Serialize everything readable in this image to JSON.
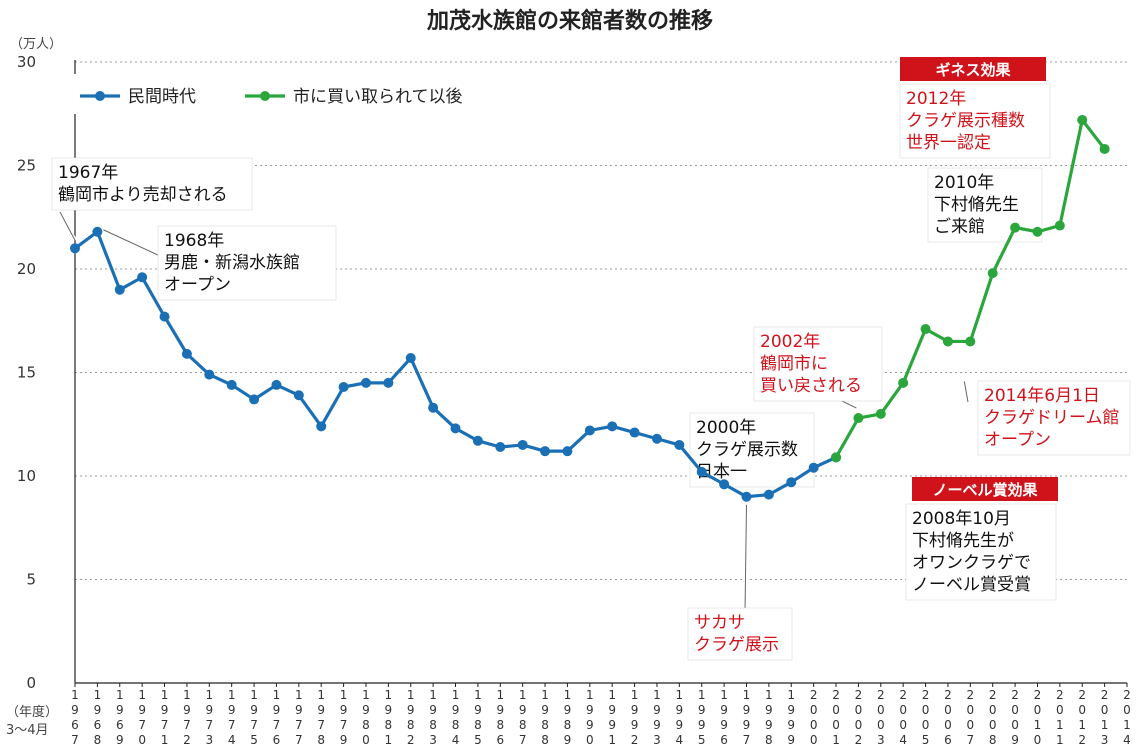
{
  "chart_data": {
    "type": "line",
    "title": "加茂水族館の来館者数の推移",
    "y_unit": "（万人）",
    "x_axis_label_lines": [
      "（年度）",
      "3〜4月"
    ],
    "ylim": [
      0,
      30
    ],
    "yticks": [
      0,
      5,
      10,
      15,
      20,
      25,
      30
    ],
    "grid": "dotted-horizontal",
    "legend_position": "top-left",
    "colors": {
      "series_private": "#1a6fb5",
      "series_city": "#2aa63d",
      "red_text": "#d0121b",
      "badge_bg": "#d0121b",
      "grid": "#999999"
    },
    "x": [
      1967,
      1968,
      1969,
      1970,
      1971,
      1972,
      1973,
      1974,
      1975,
      1976,
      1977,
      1978,
      1979,
      1980,
      1981,
      1982,
      1983,
      1984,
      1985,
      1986,
      1987,
      1988,
      1989,
      1990,
      1991,
      1992,
      1993,
      1994,
      1995,
      1996,
      1997,
      1998,
      1999,
      2000,
      2001,
      2002,
      2003,
      2004,
      2005,
      2006,
      2007,
      2008,
      2009,
      2010,
      2011,
      2012,
      2013,
      2014
    ],
    "x_tick_labels": [
      "1967",
      "1968",
      "1969",
      "1970",
      "1971",
      "1972",
      "1973",
      "1974",
      "1975",
      "1976",
      "1977",
      "1978",
      "1979",
      "1980",
      "1981",
      "1982",
      "1983",
      "1984",
      "1985",
      "1986",
      "1987",
      "1988",
      "1989",
      "1990",
      "1991",
      "1992",
      "1993",
      "1994",
      "1995",
      "1996",
      "1997",
      "1998",
      "1999",
      "2000",
      "2001",
      "2002",
      "2003",
      "2004",
      "2005",
      "2006",
      "2007",
      "2008",
      "2009",
      "2010",
      "2011",
      "2012",
      "2013",
      "2014"
    ],
    "series": [
      {
        "name": "民間時代",
        "color": "#1a6fb5",
        "x": [
          1967,
          1968,
          1969,
          1970,
          1971,
          1972,
          1973,
          1974,
          1975,
          1976,
          1977,
          1978,
          1979,
          1980,
          1981,
          1982,
          1983,
          1984,
          1985,
          1986,
          1987,
          1988,
          1989,
          1990,
          1991,
          1992,
          1993,
          1994,
          1995,
          1996,
          1997,
          1998,
          1999,
          2000,
          2001
        ],
        "values": [
          21.0,
          21.8,
          19.0,
          19.6,
          17.7,
          15.9,
          14.9,
          14.4,
          13.7,
          14.4,
          13.9,
          12.4,
          14.3,
          14.5,
          14.5,
          15.7,
          13.3,
          12.3,
          11.7,
          11.4,
          11.5,
          11.2,
          11.2,
          12.2,
          12.4,
          12.1,
          11.8,
          11.5,
          10.2,
          9.6,
          9.0,
          9.1,
          9.7,
          10.4,
          10.9
        ]
      },
      {
        "name": "市に買い取られて以後",
        "color": "#2aa63d",
        "x": [
          2001,
          2002,
          2003,
          2004,
          2005,
          2006,
          2007,
          2008,
          2009,
          2010,
          2011,
          2012,
          2013
        ],
        "values": [
          10.9,
          12.8,
          13.0,
          14.5,
          17.1,
          16.5,
          16.5,
          19.8,
          22.0,
          21.8,
          22.1,
          27.2,
          25.8
        ]
      }
    ],
    "annotations": [
      {
        "id": "a1967",
        "color": "black",
        "lines": [
          "1967年",
          "鶴岡市より売却される"
        ]
      },
      {
        "id": "a1968",
        "color": "black",
        "lines": [
          "1968年",
          "男鹿・新潟水族館",
          "オープン"
        ]
      },
      {
        "id": "a1997",
        "color": "red",
        "lines": [
          "サカサ",
          "クラゲ展示"
        ]
      },
      {
        "id": "a2000",
        "color": "black",
        "lines": [
          "2000年",
          "クラゲ展示数",
          "日本一"
        ]
      },
      {
        "id": "a2002",
        "color": "red",
        "lines": [
          "2002年",
          "鶴岡市に",
          "買い戻される"
        ]
      },
      {
        "id": "a2008",
        "color": "black",
        "badge": "ノーベル賞効果",
        "lines": [
          "2008年10月",
          "下村脩先生が",
          "オワンクラゲで",
          "ノーベル賞受賞"
        ]
      },
      {
        "id": "a2010",
        "color": "black",
        "lines": [
          "2010年",
          "下村脩先生",
          "ご来館"
        ]
      },
      {
        "id": "a2012",
        "color": "red",
        "badge": "ギネス効果",
        "lines": [
          "2012年",
          "クラゲ展示種数",
          "世界一認定"
        ]
      },
      {
        "id": "a2014",
        "color": "red",
        "lines": [
          "2014年6月1日",
          "クラゲドリーム館",
          "オープン"
        ]
      }
    ]
  }
}
